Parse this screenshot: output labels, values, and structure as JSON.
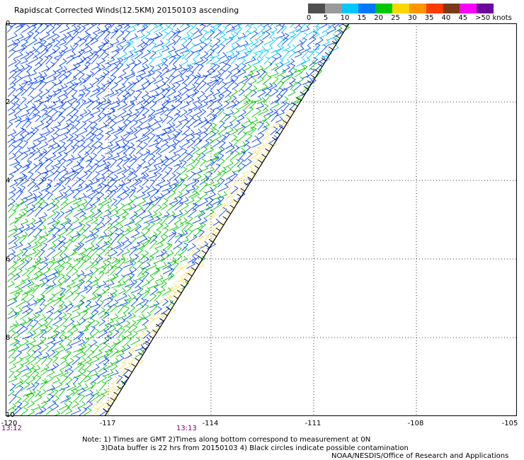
{
  "title": "Rapidscat Corrected Winds(12.5KM) 20150103 ascending",
  "scale": {
    "labels": [
      "0",
      "5",
      "10",
      "15",
      "20",
      "25",
      "30",
      "35",
      "40",
      "45",
      ">50 knots"
    ],
    "colors": [
      "#4f4f4f",
      "#9a9a9a",
      "#00c8ff",
      "#0078ff",
      "#00c800",
      "#ffd700",
      "#ff9600",
      "#ff3c00",
      "#7a3a1a",
      "#ff00ff",
      "#6a0a9a"
    ]
  },
  "map": {
    "lat_labels": [
      "0",
      "2",
      "4",
      "6",
      "8",
      "10"
    ],
    "lon_labels": [
      "-120",
      "-117",
      "-114",
      "-111",
      "-108",
      "-105"
    ],
    "time_labels": [
      "13:12",
      "13:13"
    ],
    "grid": true,
    "wind_colors": {
      "low": "#ffe066",
      "mid": "#00c800",
      "high": "#0040ff",
      "top": "#00c8ff"
    }
  },
  "notes": {
    "line1": "Note: 1) Times are GMT 2)Times along bottom correspond to measurement at 0N",
    "line2": "3)Data buffer is 22 hrs from 20150103 4) Black circles indicate possible contamination"
  },
  "credit": "NOAA/NESDIS/Office of Research and Applications"
}
